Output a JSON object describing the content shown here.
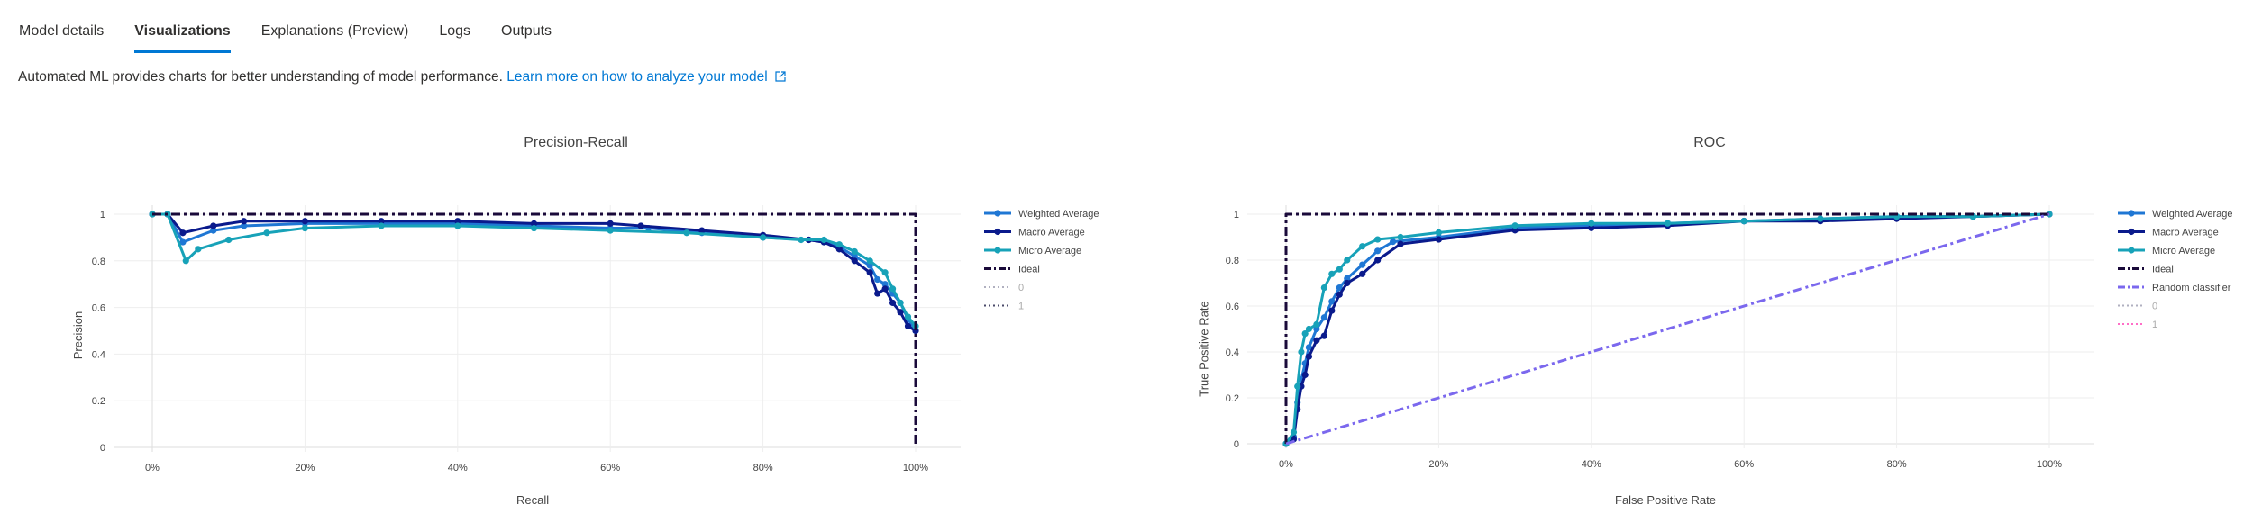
{
  "tabs": [
    {
      "label": "Model details",
      "active": false
    },
    {
      "label": "Visualizations",
      "active": true
    },
    {
      "label": "Explanations (Preview)",
      "active": false
    },
    {
      "label": "Logs",
      "active": false
    },
    {
      "label": "Outputs",
      "active": false
    }
  ],
  "intro": {
    "text": "Automated ML provides charts for better understanding of model performance.",
    "link": "Learn more on how to analyze your model"
  },
  "colors": {
    "weighted": "#1f77d4",
    "macro": "#0a1a8c",
    "micro": "#17a2b8",
    "ideal": "#1a0a3a",
    "random": "#7b68ee",
    "class0": "#b0b0c0",
    "class1_pr": "#4a4a6a",
    "class1_roc": "#ff6ec7",
    "grid": "#eeeeee",
    "axis_zero": "#dddddd"
  },
  "chart_data": [
    {
      "type": "line",
      "title": "Precision-Recall",
      "xlabel": "Recall",
      "ylabel": "Precision",
      "xlim": [
        0,
        1
      ],
      "ylim": [
        0,
        1
      ],
      "xticks": [
        "0%",
        "20%",
        "40%",
        "60%",
        "80%",
        "100%"
      ],
      "yticks": [
        "0",
        "0.2",
        "0.4",
        "0.6",
        "0.8",
        "1"
      ],
      "grid": true,
      "legend_position": "right",
      "series": [
        {
          "name": "Weighted Average",
          "key": "weighted",
          "style": "solid-marker",
          "x": [
            0,
            0.02,
            0.04,
            0.08,
            0.12,
            0.2,
            0.3,
            0.4,
            0.5,
            0.6,
            0.65,
            0.72,
            0.8,
            0.86,
            0.88,
            0.9,
            0.92,
            0.94,
            0.95,
            0.96,
            0.97,
            0.98,
            0.99,
            1.0
          ],
          "y": [
            1.0,
            1.0,
            0.88,
            0.93,
            0.95,
            0.96,
            0.96,
            0.96,
            0.95,
            0.94,
            0.94,
            0.92,
            0.9,
            0.89,
            0.88,
            0.86,
            0.82,
            0.78,
            0.72,
            0.7,
            0.66,
            0.62,
            0.55,
            0.5
          ]
        },
        {
          "name": "Macro Average",
          "key": "macro",
          "style": "solid-marker",
          "x": [
            0,
            0.02,
            0.04,
            0.08,
            0.12,
            0.2,
            0.3,
            0.4,
            0.5,
            0.6,
            0.64,
            0.72,
            0.8,
            0.86,
            0.88,
            0.9,
            0.92,
            0.94,
            0.95,
            0.96,
            0.97,
            0.98,
            0.99,
            1.0
          ],
          "y": [
            1.0,
            1.0,
            0.92,
            0.95,
            0.97,
            0.97,
            0.97,
            0.97,
            0.96,
            0.96,
            0.95,
            0.93,
            0.91,
            0.89,
            0.88,
            0.85,
            0.8,
            0.75,
            0.66,
            0.68,
            0.62,
            0.58,
            0.52,
            0.5
          ]
        },
        {
          "name": "Micro Average",
          "key": "micro",
          "style": "solid-marker",
          "x": [
            0,
            0.02,
            0.044,
            0.06,
            0.1,
            0.15,
            0.2,
            0.3,
            0.4,
            0.5,
            0.6,
            0.7,
            0.8,
            0.85,
            0.88,
            0.9,
            0.92,
            0.94,
            0.96,
            0.97,
            0.98,
            0.99,
            1.0
          ],
          "y": [
            1.0,
            1.0,
            0.8,
            0.85,
            0.89,
            0.92,
            0.94,
            0.95,
            0.95,
            0.94,
            0.93,
            0.92,
            0.9,
            0.89,
            0.89,
            0.87,
            0.84,
            0.8,
            0.75,
            0.68,
            0.62,
            0.56,
            0.52
          ]
        },
        {
          "name": "Ideal",
          "key": "ideal",
          "style": "dashdot",
          "x": [
            0,
            1,
            1
          ],
          "y": [
            1,
            1,
            0
          ]
        },
        {
          "name": "0",
          "key": "class0",
          "style": "dotted",
          "x": [],
          "y": []
        },
        {
          "name": "1",
          "key": "class1_pr",
          "style": "dotted",
          "x": [],
          "y": []
        }
      ]
    },
    {
      "type": "line",
      "title": "ROC",
      "xlabel": "False Positive Rate",
      "ylabel": "True Positive Rate",
      "xlim": [
        0,
        1
      ],
      "ylim": [
        0,
        1
      ],
      "xticks": [
        "0%",
        "20%",
        "40%",
        "60%",
        "80%",
        "100%"
      ],
      "yticks": [
        "0",
        "0.2",
        "0.4",
        "0.6",
        "0.8",
        "1"
      ],
      "grid": true,
      "legend_position": "right",
      "series": [
        {
          "name": "Weighted Average",
          "key": "weighted",
          "style": "solid-marker",
          "x": [
            0,
            0.01,
            0.015,
            0.02,
            0.025,
            0.03,
            0.04,
            0.05,
            0.06,
            0.07,
            0.08,
            0.1,
            0.12,
            0.14,
            0.2,
            0.3,
            0.4,
            0.5,
            0.6,
            0.7,
            0.8,
            0.9,
            1.0
          ],
          "y": [
            0,
            0.03,
            0.18,
            0.28,
            0.35,
            0.42,
            0.5,
            0.55,
            0.62,
            0.68,
            0.72,
            0.78,
            0.84,
            0.88,
            0.9,
            0.94,
            0.95,
            0.96,
            0.97,
            0.98,
            0.99,
            0.99,
            1.0
          ]
        },
        {
          "name": "Macro Average",
          "key": "macro",
          "style": "solid-marker",
          "x": [
            0,
            0.01,
            0.015,
            0.02,
            0.025,
            0.03,
            0.04,
            0.05,
            0.06,
            0.07,
            0.08,
            0.1,
            0.12,
            0.15,
            0.2,
            0.3,
            0.4,
            0.5,
            0.6,
            0.7,
            0.8,
            0.9,
            1.0
          ],
          "y": [
            0,
            0.02,
            0.15,
            0.25,
            0.3,
            0.38,
            0.45,
            0.47,
            0.58,
            0.65,
            0.7,
            0.74,
            0.8,
            0.87,
            0.89,
            0.93,
            0.94,
            0.95,
            0.97,
            0.97,
            0.98,
            0.99,
            1.0
          ]
        },
        {
          "name": "Micro Average",
          "key": "micro",
          "style": "solid-marker",
          "x": [
            0,
            0.01,
            0.015,
            0.02,
            0.025,
            0.03,
            0.04,
            0.05,
            0.06,
            0.07,
            0.08,
            0.1,
            0.12,
            0.15,
            0.2,
            0.3,
            0.4,
            0.5,
            0.6,
            0.7,
            0.8,
            0.9,
            1.0
          ],
          "y": [
            0,
            0.05,
            0.25,
            0.4,
            0.48,
            0.5,
            0.52,
            0.68,
            0.74,
            0.76,
            0.8,
            0.86,
            0.89,
            0.9,
            0.92,
            0.95,
            0.96,
            0.96,
            0.97,
            0.98,
            0.99,
            0.99,
            1.0
          ]
        },
        {
          "name": "Ideal",
          "key": "ideal",
          "style": "dashdot",
          "x": [
            0,
            0,
            1
          ],
          "y": [
            0,
            1,
            1
          ]
        },
        {
          "name": "Random classifier",
          "key": "random",
          "style": "dashdot",
          "x": [
            0,
            1
          ],
          "y": [
            0,
            1
          ]
        },
        {
          "name": "0",
          "key": "class0",
          "style": "dotted",
          "x": [],
          "y": []
        },
        {
          "name": "1",
          "key": "class1_roc",
          "style": "dotted",
          "x": [],
          "y": []
        }
      ]
    }
  ]
}
